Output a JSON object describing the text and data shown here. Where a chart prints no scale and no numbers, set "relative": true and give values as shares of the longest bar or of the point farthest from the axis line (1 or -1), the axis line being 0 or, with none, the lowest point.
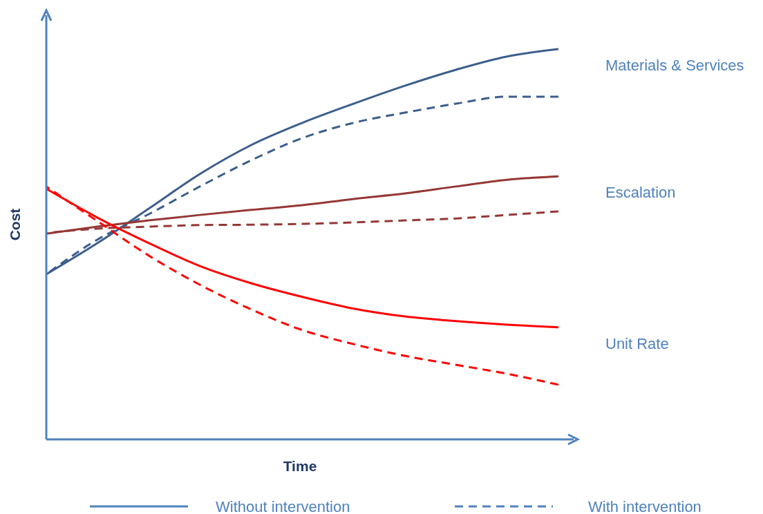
{
  "chart_data": {
    "type": "line",
    "relative": true,
    "xlabel": "Time",
    "ylabel": "Cost",
    "legend": "right",
    "marker": "none",
    "categories": [
      null,
      null,
      null,
      null,
      null,
      null,
      null,
      null,
      null,
      null,
      null
    ],
    "series": [
      {
        "name": "Materials & Services",
        "color": "#3b5e8c",
        "line_style": "solid",
        "values": [
          0.423,
          0.503,
          0.591,
          0.68,
          0.754,
          0.811,
          0.86,
          0.906,
          0.947,
          0.981,
          1
        ]
      },
      {
        "color": "#3b5e8c",
        "line_style": "dashed",
        "values": [
          0.423,
          0.512,
          0.577,
          0.648,
          0.715,
          0.772,
          0.811,
          0.837,
          0.86,
          0.878,
          0.878
        ]
      },
      {
        "name": "Escalation",
        "color": "#953735",
        "line_style": "solid",
        "values": [
          0.527,
          0.545,
          0.561,
          0.575,
          0.588,
          0.6,
          0.616,
          0.63,
          0.648,
          0.665,
          0.674
        ]
      },
      {
        "color": "#953735",
        "line_style": "dashed",
        "values": [
          0.529,
          0.54,
          0.545,
          0.549,
          0.55,
          0.552,
          0.556,
          0.561,
          0.566,
          0.575,
          0.584
        ]
      },
      {
        "name": "Unit Rate",
        "color": "#ff0000",
        "line_style": "solid",
        "values": [
          0.642,
          0.568,
          0.503,
          0.444,
          0.4,
          0.365,
          0.335,
          0.315,
          0.303,
          0.294,
          0.287
        ]
      },
      {
        "color": "#ff0000",
        "line_style": "dashed",
        "values": [
          0.648,
          0.559,
          0.471,
          0.396,
          0.333,
          0.28,
          0.244,
          0.214,
          0.191,
          0.168,
          0.14
        ]
      }
    ],
    "annotations": [
      "Without intervention",
      "With intervention"
    ]
  }
}
